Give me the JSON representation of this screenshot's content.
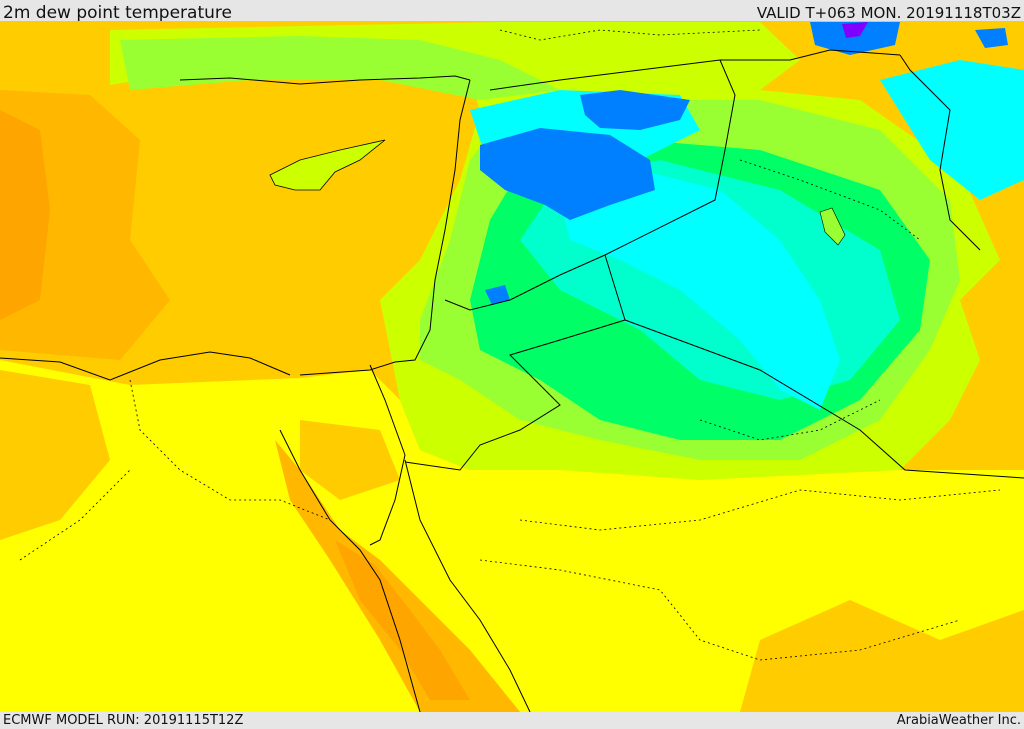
{
  "header": {
    "title": "2m dew point temperature",
    "valid": "VALID T+063 MON. 20191118T03Z"
  },
  "footer": {
    "model_run": "ECMWF MODEL RUN: 20191115T12Z",
    "credit": "ArabiaWeather Inc."
  },
  "map": {
    "field": "dew-point-temperature",
    "region": "eastern-mediterranean-and-middle-east",
    "palette": {
      "deep_orange": "#ffa500",
      "orange": "#ffb700",
      "amber": "#ffcc00",
      "yellow": "#ffff00",
      "yellow_green": "#ccff00",
      "light_green": "#99ff33",
      "green": "#00ff66",
      "aqua": "#00ffcc",
      "cyan": "#00ffff",
      "blue": "#0080ff",
      "purple": "#8000ff",
      "border": "#000000"
    }
  }
}
